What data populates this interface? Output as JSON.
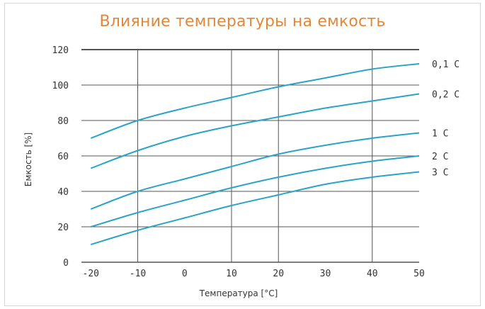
{
  "chart_data": {
    "type": "line",
    "title": "Влияние температуры на емкость",
    "xlabel": "Температура [°C]",
    "ylabel": "Емкость [%]",
    "xlim": [
      -22,
      50
    ],
    "ylim": [
      0,
      120
    ],
    "x_ticks": [
      "-20",
      "-10",
      "0",
      "10",
      "20",
      "30",
      "40",
      "50"
    ],
    "x_tick_values": [
      -20,
      -10,
      0,
      10,
      20,
      30,
      40,
      50
    ],
    "y_ticks": [
      "0",
      "20",
      "40",
      "60",
      "80",
      "100",
      "120"
    ],
    "y_tick_values": [
      0,
      20,
      40,
      60,
      80,
      100,
      120
    ],
    "grid": true,
    "line_color": "#2aa3c8",
    "grid_color": "#555555",
    "x": [
      -20,
      -10,
      0,
      10,
      20,
      30,
      40,
      50
    ],
    "series": [
      {
        "name": "0,1 C",
        "values": [
          70,
          80,
          87,
          93,
          99,
          104,
          109,
          112
        ]
      },
      {
        "name": "0,2 C",
        "values": [
          53,
          63,
          71,
          77,
          82,
          87,
          91,
          95
        ]
      },
      {
        "name": "1 C",
        "values": [
          30,
          40,
          47,
          54,
          61,
          66,
          70,
          73
        ]
      },
      {
        "name": "2 C",
        "values": [
          20,
          28,
          35,
          42,
          48,
          53,
          57,
          60
        ]
      },
      {
        "name": "3 C",
        "values": [
          10,
          18,
          25,
          32,
          38,
          44,
          48,
          51
        ]
      }
    ]
  }
}
